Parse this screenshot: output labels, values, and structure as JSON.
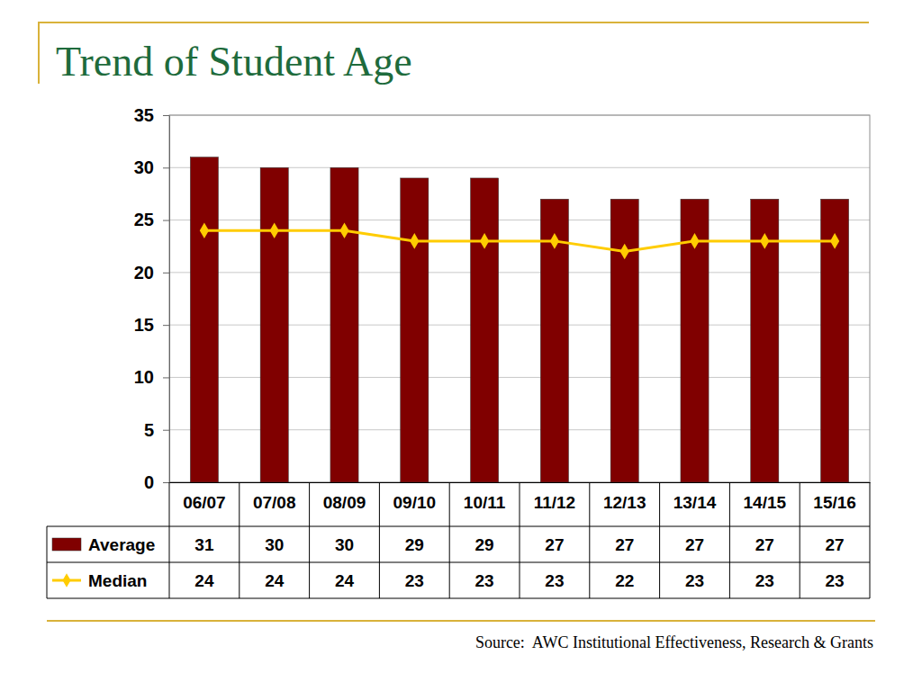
{
  "chart_data": {
    "type": "bar",
    "title": "Trend of Student Age",
    "categories": [
      "06/07",
      "07/08",
      "08/09",
      "09/10",
      "10/11",
      "11/12",
      "12/13",
      "13/14",
      "14/15",
      "15/16"
    ],
    "series": [
      {
        "name": "Average",
        "type": "bar",
        "color": "#800000",
        "values": [
          31,
          30,
          30,
          29,
          29,
          27,
          27,
          27,
          27,
          27
        ]
      },
      {
        "name": "Median",
        "type": "line",
        "color": "#ffcc00",
        "marker": "diamond",
        "values": [
          24,
          24,
          24,
          23,
          23,
          23,
          22,
          23,
          23,
          23
        ]
      }
    ],
    "ylim": [
      0,
      35
    ],
    "yticks": [
      0,
      5,
      10,
      15,
      20,
      25,
      30,
      35
    ],
    "grid": true,
    "data_labels": true,
    "source": "Source:  AWC Institutional Effectiveness, Research & Grants"
  }
}
